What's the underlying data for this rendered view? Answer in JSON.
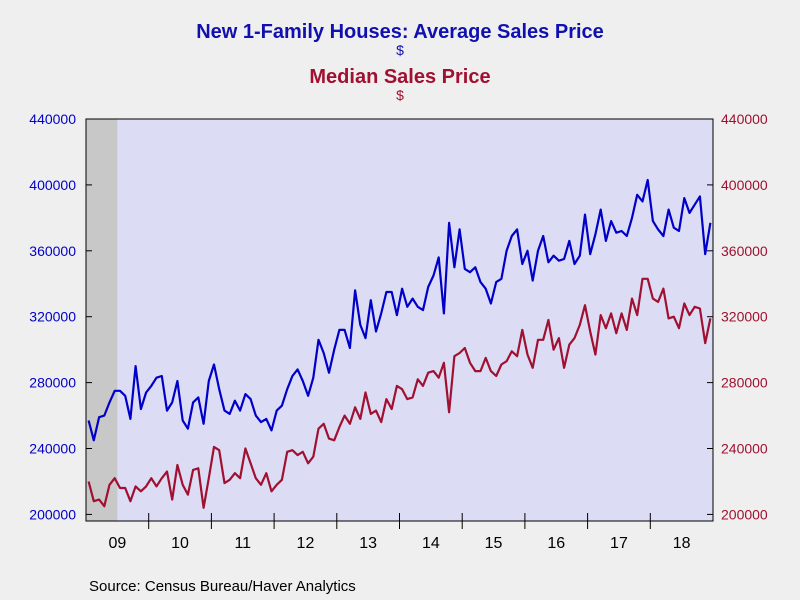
{
  "title": "New 1-Family Houses: Average Sales Price",
  "title_unit": "$",
  "subtitle": "Median Sales Price",
  "subtitle_unit": "$",
  "source": "Source:  Census Bureau/Haver Analytics",
  "colors": {
    "average": "#0000c8",
    "median": "#a01030",
    "recession": "#c8c8c8",
    "plot_bg": "#dcdcf5"
  },
  "chart_data": {
    "type": "line",
    "x_start": "2009-01",
    "frequency": "monthly",
    "x_tick_labels": [
      "09",
      "10",
      "11",
      "12",
      "13",
      "14",
      "15",
      "16",
      "17",
      "18"
    ],
    "recession_shading": {
      "start": "2009-01",
      "end": "2009-06"
    },
    "ylim": [
      196000,
      440000
    ],
    "yticks_left": [
      "200000",
      "240000",
      "280000",
      "320000",
      "360000",
      "400000",
      "440000"
    ],
    "yticks_right": [
      "200000",
      "240000",
      "280000",
      "320000",
      "360000",
      "400000",
      "440000"
    ],
    "grid": false,
    "legend": "none",
    "series": [
      {
        "name": "New 1-Family Houses: Average Sales Price",
        "axis": "left",
        "values": [
          257000,
          245000,
          259000,
          260000,
          268000,
          275000,
          275000,
          272000,
          258000,
          290000,
          264000,
          274000,
          278000,
          283000,
          284000,
          263000,
          268000,
          281000,
          257000,
          252000,
          268000,
          271000,
          255000,
          281000,
          291000,
          276000,
          263000,
          261000,
          269000,
          263000,
          273000,
          270000,
          260000,
          256000,
          258000,
          251000,
          263000,
          266000,
          276000,
          284000,
          288000,
          281000,
          272000,
          283000,
          306000,
          298000,
          286000,
          300000,
          312000,
          312000,
          301000,
          336000,
          315000,
          307000,
          330000,
          311000,
          322000,
          335000,
          335000,
          321000,
          337000,
          326000,
          331000,
          326000,
          324000,
          338000,
          345000,
          356000,
          322000,
          377000,
          350000,
          373000,
          349000,
          347000,
          350000,
          341000,
          337000,
          328000,
          341000,
          343000,
          360000,
          369000,
          373000,
          352000,
          360000,
          342000,
          360000,
          369000,
          353000,
          357000,
          354000,
          355000,
          366000,
          352000,
          357000,
          382000,
          358000,
          370000,
          385000,
          366000,
          378000,
          371000,
          372000,
          369000,
          380000,
          394000,
          390000,
          403000,
          378000,
          373000,
          369000,
          385000,
          374000,
          372000,
          392000,
          383000,
          388000,
          393000,
          358000,
          377000
        ]
      },
      {
        "name": "Median Sales Price",
        "axis": "right",
        "values": [
          220000,
          208000,
          209000,
          205000,
          218000,
          222000,
          216000,
          216000,
          208000,
          217000,
          214000,
          217000,
          222000,
          217000,
          222000,
          226000,
          209000,
          230000,
          218000,
          212000,
          227000,
          228000,
          204000,
          222000,
          241000,
          239000,
          219000,
          221000,
          225000,
          222000,
          240000,
          231000,
          222000,
          218000,
          225000,
          214000,
          218000,
          221000,
          238000,
          239000,
          236000,
          238000,
          231000,
          235000,
          252000,
          255000,
          246000,
          245000,
          253000,
          260000,
          255000,
          265000,
          258000,
          274000,
          261000,
          263000,
          256000,
          270000,
          264000,
          278000,
          276000,
          270000,
          271000,
          282000,
          278000,
          286000,
          287000,
          283000,
          292000,
          262000,
          296000,
          298000,
          301000,
          292000,
          287000,
          287000,
          295000,
          287000,
          284000,
          291000,
          293000,
          299000,
          296000,
          312000,
          297000,
          289000,
          306000,
          306000,
          318000,
          300000,
          307000,
          289000,
          303000,
          307000,
          315000,
          327000,
          311000,
          297000,
          321000,
          313000,
          322000,
          310000,
          322000,
          312000,
          331000,
          321000,
          343000,
          343000,
          331000,
          329000,
          337000,
          319000,
          320000,
          313000,
          328000,
          321000,
          326000,
          325000,
          304000,
          319000
        ]
      }
    ]
  }
}
